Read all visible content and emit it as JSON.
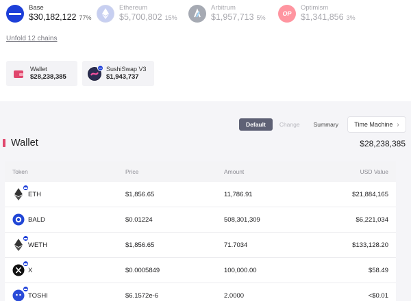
{
  "chains": [
    {
      "name": "Base",
      "value": "$30,182,122",
      "pct": "77%",
      "logo": "base-logo",
      "active": true
    },
    {
      "name": "Ethereum",
      "value": "$5,700,802",
      "pct": "15%",
      "logo": "ethereum-logo",
      "active": false
    },
    {
      "name": "Arbitrum",
      "value": "$1,957,713",
      "pct": "5%",
      "logo": "arbitrum-logo",
      "active": false
    },
    {
      "name": "Optimism",
      "value": "$1,341,856",
      "pct": "3%",
      "logo": "optimism-logo",
      "logo_text": "OP",
      "active": false
    }
  ],
  "unfold_label": "Unfold 12 chains",
  "protocols": [
    {
      "name": "Wallet",
      "value": "$28,238,385",
      "icon": "wallet-icon"
    },
    {
      "name": "SushiSwap V3",
      "value": "$1,943,737",
      "icon": "sushiswap-icon"
    }
  ],
  "tabs": [
    {
      "label": "Default",
      "state": "selected"
    },
    {
      "label": "Change",
      "state": "disabled"
    },
    {
      "label": "Summary",
      "state": "normal"
    }
  ],
  "time_machine_label": "Time Machine",
  "wallet": {
    "title": "Wallet",
    "total": "$28,238,385"
  },
  "table": {
    "headers": {
      "token": "Token",
      "price": "Price",
      "amount": "Amount",
      "usd": "USD Value"
    },
    "rows": [
      {
        "token": "ETH",
        "price": "$1,856.65",
        "amount": "11,786.91",
        "usd": "$21,884,165",
        "icon": "eth-token-icon"
      },
      {
        "token": "BALD",
        "price": "$0.01224",
        "amount": "508,301,309",
        "usd": "$6,221,034",
        "icon": "bald-token-icon"
      },
      {
        "token": "WETH",
        "price": "$1,856.65",
        "amount": "71.7034",
        "usd": "$133,128.20",
        "icon": "weth-token-icon"
      },
      {
        "token": "X",
        "price": "$0.0005849",
        "amount": "100,000.00",
        "usd": "$58.49",
        "icon": "x-token-icon"
      },
      {
        "token": "TOSHI",
        "price": "$6.1572e-6",
        "amount": "2.0000",
        "usd": "<$0.01",
        "icon": "toshi-token-icon"
      }
    ]
  },
  "colors": {
    "base_blue": "#1d3fd8",
    "accent_pink": "#e0486e",
    "selected_tab": "#5e6175"
  }
}
